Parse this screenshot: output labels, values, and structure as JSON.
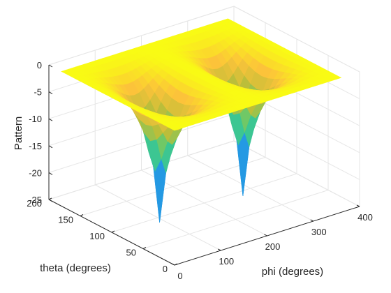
{
  "chart_data": {
    "type": "surface",
    "title": "",
    "xlabel": "phi (degrees)",
    "ylabel": "theta (degrees)",
    "zlabel": "Pattern",
    "xlim": [
      0,
      400
    ],
    "ylim": [
      0,
      200
    ],
    "zlim": [
      -25,
      0
    ],
    "x_ticks": [
      "0",
      "100",
      "200",
      "300",
      "400"
    ],
    "y_ticks": [
      "0",
      "50",
      "100",
      "150",
      "200"
    ],
    "z_ticks": [
      "0",
      "-5",
      "-10",
      "-15",
      "-20",
      "-25"
    ],
    "grid": true,
    "box": true,
    "colormap": "parula",
    "phi_range": [
      0,
      360
    ],
    "theta_range": [
      0,
      180
    ],
    "grid_step_degrees": 10,
    "null_directions": [
      {
        "phi": 90,
        "theta": 90
      },
      {
        "phi": 270,
        "theta": 90
      }
    ],
    "pattern_model": "10*log10(1 - (sin(theta)*sin(phi))^2)",
    "floor_db": -25
  },
  "colors": {
    "background": "#ffffff",
    "axis": "#262626",
    "grid": "#e6e6e6"
  }
}
